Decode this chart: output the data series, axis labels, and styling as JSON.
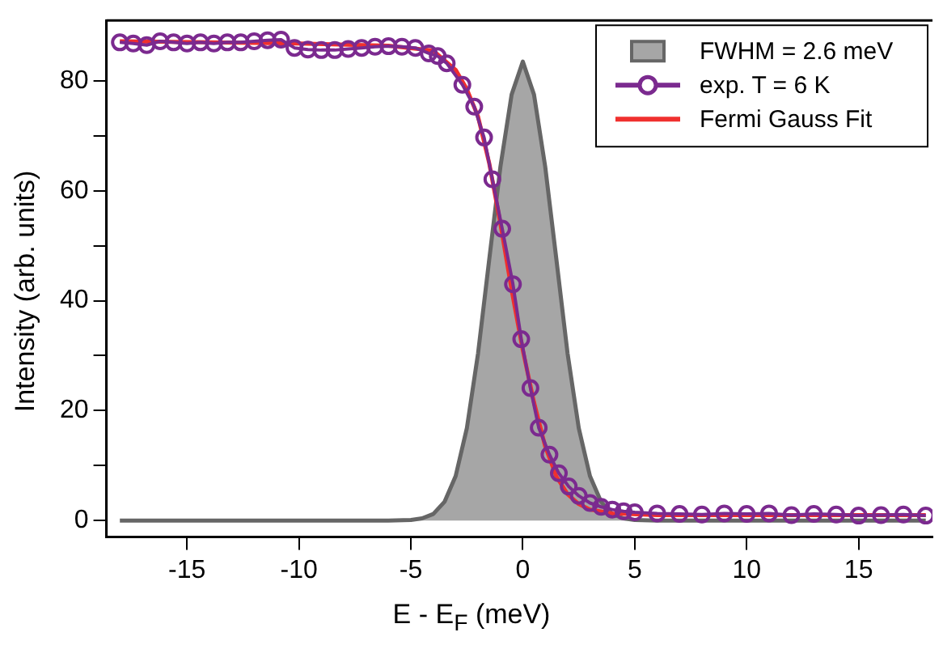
{
  "chart_data": {
    "type": "line",
    "xlabel": "E - E$_{F}$  (meV)",
    "ylabel": "Intensity (arb. units)",
    "xlim": [
      -18.6,
      18.3
    ],
    "xticks": [
      -15,
      -10,
      -5,
      0,
      5,
      10,
      15
    ],
    "ylim": [
      -3,
      91
    ],
    "yticks": [
      0,
      {
        "value": 10,
        "label": null
      },
      20,
      {
        "value": 30,
        "label": null
      },
      40,
      {
        "value": 50,
        "label": null
      },
      60,
      {
        "value": 70,
        "label": null
      },
      80
    ],
    "grid": false,
    "legend": "top right",
    "series": [
      {
        "name": "FWHM = 2.6 meV",
        "type": "area",
        "color": "#a6a6a6",
        "x": [
          -18,
          -6,
          -5,
          -4.5,
          -4,
          -3.5,
          -3,
          -2.5,
          -2,
          -1.5,
          -1,
          -0.5,
          0,
          0.5,
          1,
          1.5,
          2,
          2.5,
          3,
          3.5,
          4,
          4.5,
          5,
          6,
          18
        ],
        "values": [
          0,
          0,
          0.1,
          0.4,
          1.2,
          3.4,
          8.1,
          16.8,
          30.4,
          47.5,
          64.4,
          77.5,
          83.5,
          77.5,
          64.4,
          47.5,
          30.4,
          16.8,
          8.1,
          3.4,
          1.2,
          0.4,
          0.1,
          0,
          0
        ]
      },
      {
        "name": "exp. T = 6 K",
        "type": "line",
        "marker": "circle",
        "color": "#7b2a8f",
        "x": [
          -18,
          -17.4,
          -16.8,
          -16.2,
          -15.6,
          -15,
          -14.4,
          -13.8,
          -13.2,
          -12.6,
          -12,
          -11.4,
          -10.8,
          -10.2,
          -9.6,
          -9,
          -8.4,
          -7.8,
          -7.2,
          -6.6,
          -6,
          -5.4,
          -4.8,
          -4.2,
          -3.8,
          -3.4,
          -2.7,
          -2.17,
          -1.73,
          -1.36,
          -0.92,
          -0.44,
          -0.07,
          0.34,
          0.71,
          1.19,
          1.61,
          2.05,
          2.5,
          3,
          3.5,
          4,
          4.5,
          5,
          6,
          7,
          8,
          9,
          10,
          11,
          12,
          13,
          14,
          15,
          16,
          17,
          18
        ],
        "values": [
          87,
          86.8,
          86.5,
          87.2,
          87,
          86.8,
          87,
          86.8,
          87,
          87,
          87.2,
          87.4,
          87.5,
          86,
          85.7,
          85.6,
          85.6,
          85.8,
          86,
          86.2,
          86.3,
          86.2,
          86,
          85,
          84.5,
          83.2,
          79.3,
          75.3,
          69.7,
          62.1,
          53.1,
          43,
          33,
          24.1,
          16.9,
          12,
          8.6,
          6.2,
          4.5,
          3.2,
          2.5,
          2,
          1.7,
          1.5,
          1.3,
          1.2,
          1.1,
          1.3,
          1.2,
          1.3,
          1,
          1.2,
          1.1,
          0.9,
          1,
          1.1,
          0.9
        ]
      },
      {
        "name": "Fermi Gauss Fit",
        "type": "line",
        "color": "#f0302e",
        "x": [
          -18,
          -10,
          -6,
          -4,
          -3,
          -2.5,
          -2,
          -1.5,
          -1,
          -0.5,
          0,
          0.5,
          1,
          1.5,
          2,
          2.5,
          3,
          4,
          6,
          18
        ],
        "values": [
          87.2,
          86.8,
          86.4,
          85.5,
          82,
          78.5,
          73.5,
          65,
          54,
          42,
          31,
          21.5,
          13.5,
          8,
          4.8,
          3,
          2,
          1.3,
          1,
          1
        ]
      }
    ]
  }
}
